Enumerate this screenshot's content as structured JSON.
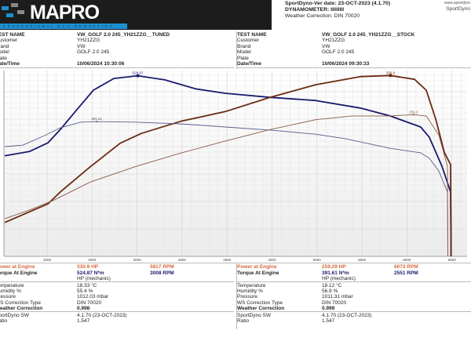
{
  "header": {
    "logo": "MAPRO",
    "logo_tagline": "PROFESSIONAL ECU REMAPPING",
    "version": "SportDyno-Ver date: 23-OCT-2023 (4.1.70)",
    "dynamometer": "DYNAMOMETER: IIIIIIIII",
    "weather": "Weather Correction: DIN 70020",
    "site1": "www.sportdync",
    "site2": "SportDyno"
  },
  "tests": [
    {
      "rows": [
        [
          "TEST NAME",
          "VW_GOLF 2.0 245_YH21ZZG__TUNED"
        ],
        [
          "Customer",
          "YH21ZZG"
        ],
        [
          "Brand",
          "VW"
        ],
        [
          "Model",
          "GOLF 2.0 245"
        ],
        [
          "Plate",
          ""
        ],
        [
          "Date/Time",
          "10/06/2024 10:30:06"
        ]
      ],
      "power_label": "Power at Engine",
      "power": "330.9 HP",
      "power_rpm": "5817 RPM",
      "torque_label": "Torque At Engine",
      "torque": "524.87 N*m",
      "torque_rpm": "3008 RPM",
      "mode": "HP (mechanic)",
      "env": [
        [
          "Temperature",
          "18.33 °C"
        ],
        [
          "Humidity %",
          "55.4 %"
        ],
        [
          "Pressure",
          "1012.03 mbar"
        ],
        [
          "WS Correction Type",
          "DIN 70020"
        ],
        [
          "Weather Correction",
          "0.998"
        ]
      ],
      "sw": [
        [
          "SportDyno SW",
          "4.1.70 (23-OCT-2023)"
        ],
        [
          "Ratio",
          "1.547"
        ]
      ]
    },
    {
      "rows": [
        [
          "TEST NAME",
          "VW_GOLF 2.0 245_YH21ZZG__STOCK"
        ],
        [
          "Customer",
          "YH21ZZG"
        ],
        [
          "Brand",
          "VW"
        ],
        [
          "Model",
          "GOLF 2.0 245"
        ],
        [
          "Plate",
          ""
        ],
        [
          "Date/Time",
          "10/06/2024 09:30:33"
        ]
      ],
      "power_label": "Power at Engine",
      "power": "259.29 HP",
      "power_rpm": "6073 RPM",
      "torque_label": "Torque At Engine",
      "torque": "391.61 N*m",
      "torque_rpm": "2551 RPM",
      "mode": "HP (mechanic)",
      "env": [
        [
          "Temperature",
          "18.12 °C"
        ],
        [
          "Humidity %",
          "56.9 %"
        ],
        [
          "Pressure",
          "1011.31 mbar"
        ],
        [
          "WS Correction Type",
          "DIN 70020"
        ],
        [
          "Weather Correction",
          "0.999"
        ]
      ],
      "sw": [
        [
          "SportDyno SW",
          "4.1.70 (23-OCT-2023)"
        ],
        [
          "Ratio",
          "1.547"
        ]
      ]
    }
  ],
  "chart_data": {
    "type": "line",
    "grid": true,
    "xlabel": "",
    "ylabel": "",
    "x_ticks": [
      "2000",
      "2500",
      "3000",
      "3500",
      "4000",
      "4500",
      "5000",
      "5500",
      "6000",
      "6500"
    ],
    "xlim": [
      1520,
      6600
    ],
    "torque_ylim": [
      0,
      540
    ],
    "power_ylim": [
      0,
      340
    ],
    "series": [
      {
        "key": "tuned_torque",
        "axis": "torque",
        "color": "#1a1a6e",
        "width": 1.8,
        "peak_label": "524.87",
        "peak": [
          3008,
          524.87
        ],
        "points": [
          [
            1529,
            292
          ],
          [
            1808,
            305
          ],
          [
            2009,
            330
          ],
          [
            2148,
            369
          ],
          [
            2314,
            421
          ],
          [
            2515,
            483
          ],
          [
            2742,
            517
          ],
          [
            3008,
            524.87
          ],
          [
            3309,
            513
          ],
          [
            3649,
            487
          ],
          [
            3981,
            474
          ],
          [
            4478,
            462
          ],
          [
            4984,
            453
          ],
          [
            5482,
            431
          ],
          [
            5813,
            408
          ],
          [
            6153,
            376
          ],
          [
            6249,
            346
          ],
          [
            6389,
            262
          ],
          [
            6485,
            187
          ],
          [
            6490,
            0
          ]
        ]
      },
      {
        "key": "tuned_power",
        "axis": "power",
        "color": "#6b2a10",
        "width": 1.8,
        "peak_label": "330.9",
        "peak": [
          5817,
          330.9
        ],
        "points": [
          [
            1529,
            62
          ],
          [
            2009,
            96
          ],
          [
            2148,
            118
          ],
          [
            2480,
            164
          ],
          [
            2812,
            207
          ],
          [
            3047,
            225
          ],
          [
            3483,
            247
          ],
          [
            3981,
            265
          ],
          [
            4478,
            291
          ],
          [
            4984,
            314
          ],
          [
            5482,
            329
          ],
          [
            5817,
            330.9
          ],
          [
            6084,
            324
          ],
          [
            6215,
            304
          ],
          [
            6320,
            251
          ],
          [
            6416,
            190
          ],
          [
            6485,
            168
          ],
          [
            6490,
            0
          ]
        ]
      },
      {
        "key": "stock_torque",
        "axis": "torque",
        "color": "#5a5a8c",
        "width": 0.9,
        "peak_label": "391.61",
        "peak": [
          2551,
          391.61
        ],
        "points": [
          [
            1529,
            319
          ],
          [
            1729,
            323
          ],
          [
            1974,
            351
          ],
          [
            2148,
            374
          ],
          [
            2375,
            390
          ],
          [
            2551,
            391.61
          ],
          [
            2977,
            390
          ],
          [
            3483,
            385
          ],
          [
            3981,
            376
          ],
          [
            4478,
            367
          ],
          [
            4984,
            355
          ],
          [
            5316,
            342
          ],
          [
            5813,
            314
          ],
          [
            6153,
            301
          ],
          [
            6249,
            285
          ],
          [
            6354,
            248
          ],
          [
            6450,
            187
          ],
          [
            6455,
            0
          ]
        ]
      },
      {
        "key": "stock_power",
        "axis": "power",
        "color": "#8a5a48",
        "width": 0.9,
        "peak_label": "259.3",
        "peak": [
          6073,
          259.29
        ],
        "points": [
          [
            1529,
            69
          ],
          [
            1808,
            85
          ],
          [
            2078,
            103
          ],
          [
            2480,
            136
          ],
          [
            2977,
            164
          ],
          [
            3483,
            189
          ],
          [
            3981,
            211
          ],
          [
            4478,
            232
          ],
          [
            4984,
            250
          ],
          [
            5386,
            257
          ],
          [
            5813,
            257
          ],
          [
            6073,
            259.29
          ],
          [
            6215,
            257
          ],
          [
            6354,
            222
          ],
          [
            6450,
            165
          ],
          [
            6455,
            0
          ]
        ]
      }
    ]
  }
}
